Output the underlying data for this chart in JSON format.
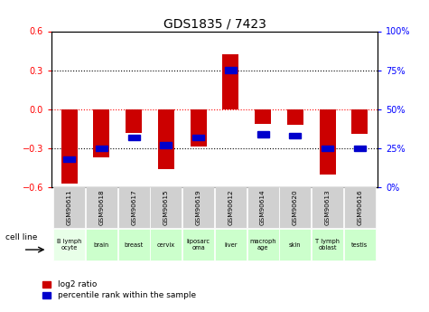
{
  "title": "GDS1835 / 7423",
  "gsm_labels": [
    "GSM90611",
    "GSM90618",
    "GSM90617",
    "GSM90615",
    "GSM90619",
    "GSM90612",
    "GSM90614",
    "GSM90620",
    "GSM90613",
    "GSM90616"
  ],
  "cell_lines": [
    "B lymph\nocyte",
    "brain",
    "breast",
    "cervix",
    "liposarc\noma",
    "liver",
    "macroph\nage",
    "skin",
    "T lymph\noblast",
    "testis"
  ],
  "log2_ratio": [
    -0.57,
    -0.37,
    -0.18,
    -0.46,
    -0.29,
    0.42,
    -0.11,
    -0.12,
    -0.5,
    -0.19
  ],
  "percentile_rank": [
    18,
    25,
    32,
    27,
    32,
    75,
    34,
    33,
    25,
    25
  ],
  "ylim": [
    -0.6,
    0.6
  ],
  "y2lim": [
    0,
    100
  ],
  "yticks": [
    -0.6,
    -0.3,
    0.0,
    0.3,
    0.6
  ],
  "y2ticks": [
    0,
    25,
    50,
    75,
    100
  ],
  "bar_color_red": "#cc0000",
  "bar_color_blue": "#0000cc",
  "bar_width": 0.5,
  "legend_red_label": "log2 ratio",
  "legend_blue_label": "percentile rank within the sample",
  "cell_line_label": "cell line",
  "background_color": "#ffffff",
  "plot_bg_color": "#ffffff",
  "gsm_bg_color": "#d0d0d0",
  "cell_bg_color": "#ccffcc",
  "cell_first_color": "#e8ffe8"
}
